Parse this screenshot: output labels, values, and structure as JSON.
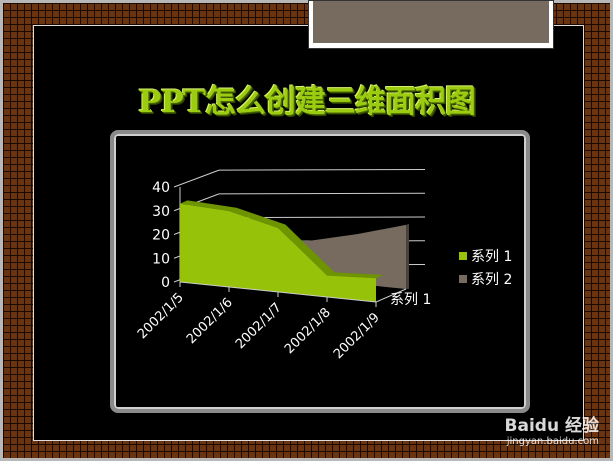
{
  "slide": {
    "title": "PPT怎么创建三维面积图"
  },
  "watermark": {
    "brand": "Baidu 经验",
    "url": "jingyan.baidu.com"
  },
  "colors": {
    "series1": "#96c30a",
    "series2": "#766b5e",
    "background": "#000000"
  },
  "chart_data": {
    "type": "area",
    "three_d": true,
    "categories": [
      "2002/1/5",
      "2002/1/6",
      "2002/1/7",
      "2002/1/8",
      "2002/1/9"
    ],
    "y_ticks": [
      "0",
      "10",
      "20",
      "30",
      "40"
    ],
    "ylim": [
      0,
      40
    ],
    "depth_label": "系列 1",
    "grid": true,
    "legend_position": "right",
    "series": [
      {
        "name": "系列 1",
        "values": [
          33,
          32,
          27,
          9,
          10
        ]
      },
      {
        "name": "系列 2",
        "values": [
          12,
          14,
          16,
          21,
          27
        ]
      }
    ]
  }
}
